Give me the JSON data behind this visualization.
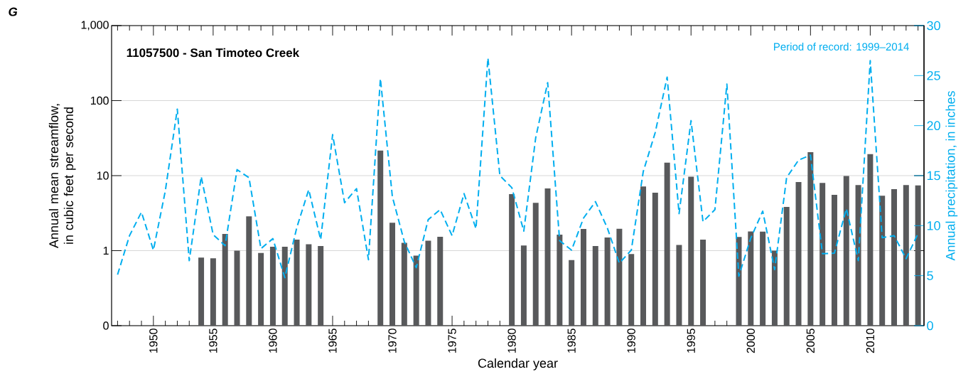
{
  "chart_data": {
    "type": "bar",
    "title": "11057500 - San Timoteo Creek",
    "annotations": [
      "G",
      "Period of record: 1999–2014"
    ],
    "xlabel": "Calendar year",
    "ylabel": "Annual mean streamflow, in cubic feet per second",
    "y2label": "Annual precipitation, in inches",
    "x": [
      1947,
      1948,
      1949,
      1950,
      1951,
      1952,
      1953,
      1954,
      1955,
      1956,
      1957,
      1958,
      1959,
      1960,
      1961,
      1962,
      1963,
      1964,
      1965,
      1966,
      1967,
      1968,
      1969,
      1970,
      1971,
      1972,
      1973,
      1974,
      1975,
      1976,
      1977,
      1978,
      1979,
      1980,
      1981,
      1982,
      1983,
      1984,
      1985,
      1986,
      1987,
      1988,
      1989,
      1990,
      1991,
      1992,
      1993,
      1994,
      1995,
      1996,
      1997,
      1998,
      1999,
      2000,
      2001,
      2002,
      2003,
      2004,
      2005,
      2006,
      2007,
      2008,
      2009,
      2010,
      2011,
      2012,
      2013,
      2014
    ],
    "series": [
      {
        "color": "#58595b",
        "values": [
          null,
          null,
          null,
          null,
          null,
          null,
          null,
          0.81,
          0.79,
          1.67,
          1.0,
          2.86,
          0.93,
          1.13,
          1.13,
          1.4,
          1.22,
          1.15,
          null,
          null,
          null,
          null,
          21.6,
          2.35,
          1.27,
          0.86,
          1.36,
          1.53,
          null,
          null,
          null,
          null,
          null,
          5.67,
          1.17,
          4.34,
          6.75,
          1.63,
          0.75,
          1.95,
          1.15,
          1.5,
          1.96,
          0.9,
          7.16,
          5.93,
          14.9,
          1.19,
          9.7,
          1.4,
          null,
          null,
          1.52,
          1.8,
          1.79,
          1.0,
          3.83,
          8.2,
          20.5,
          7.98,
          5.55,
          9.9,
          7.5,
          19.4,
          5.39,
          6.6,
          7.5,
          7.4
        ]
      },
      {
        "type": "line",
        "axis": "y2",
        "color": "#00aeef",
        "line_style": "dashed",
        "marker": "none",
        "values": [
          5.1,
          9.0,
          11.35,
          7.55,
          13.5,
          21.65,
          6.5,
          14.9,
          9.1,
          8.0,
          15.6,
          14.8,
          7.7,
          8.7,
          4.8,
          9.8,
          13.6,
          8.6,
          19.1,
          12.3,
          13.7,
          6.6,
          24.7,
          12.9,
          8.4,
          5.8,
          10.6,
          11.6,
          9.0,
          13.2,
          9.7,
          26.75,
          15.0,
          13.8,
          9.45,
          18.8,
          24.3,
          8.5,
          7.55,
          10.75,
          12.4,
          9.75,
          6.25,
          7.55,
          15.4,
          19.3,
          24.85,
          11.2,
          20.5,
          10.4,
          11.6,
          24.15,
          4.95,
          8.75,
          11.45,
          5.6,
          14.8,
          16.55,
          17.05,
          7.2,
          7.25,
          11.7,
          6.5,
          26.5,
          8.8,
          9.0,
          6.7,
          9.2
        ]
      }
    ],
    "xlim": [
      1946.5,
      2014.5
    ],
    "xticks": [
      {
        "value": 1947,
        "label": null
      },
      {
        "value": 1948,
        "label": null
      },
      {
        "value": 1949,
        "label": null
      },
      1950,
      {
        "value": 1951,
        "label": null
      },
      {
        "value": 1952,
        "label": null
      },
      {
        "value": 1953,
        "label": null
      },
      {
        "value": 1954,
        "label": null
      },
      1955,
      {
        "value": 1956,
        "label": null
      },
      {
        "value": 1957,
        "label": null
      },
      {
        "value": 1958,
        "label": null
      },
      {
        "value": 1959,
        "label": null
      },
      1960,
      {
        "value": 1961,
        "label": null
      },
      {
        "value": 1962,
        "label": null
      },
      {
        "value": 1963,
        "label": null
      },
      {
        "value": 1964,
        "label": null
      },
      1965,
      {
        "value": 1966,
        "label": null
      },
      {
        "value": 1967,
        "label": null
      },
      {
        "value": 1968,
        "label": null
      },
      {
        "value": 1969,
        "label": null
      },
      1970,
      {
        "value": 1971,
        "label": null
      },
      {
        "value": 1972,
        "label": null
      },
      {
        "value": 1973,
        "label": null
      },
      {
        "value": 1974,
        "label": null
      },
      1975,
      {
        "value": 1976,
        "label": null
      },
      {
        "value": 1977,
        "label": null
      },
      {
        "value": 1978,
        "label": null
      },
      {
        "value": 1979,
        "label": null
      },
      1980,
      {
        "value": 1981,
        "label": null
      },
      {
        "value": 1982,
        "label": null
      },
      {
        "value": 1983,
        "label": null
      },
      {
        "value": 1984,
        "label": null
      },
      1985,
      {
        "value": 1986,
        "label": null
      },
      {
        "value": 1987,
        "label": null
      },
      {
        "value": 1988,
        "label": null
      },
      {
        "value": 1989,
        "label": null
      },
      1990,
      {
        "value": 1991,
        "label": null
      },
      {
        "value": 1992,
        "label": null
      },
      {
        "value": 1993,
        "label": null
      },
      {
        "value": 1994,
        "label": null
      },
      1995,
      {
        "value": 1996,
        "label": null
      },
      {
        "value": 1997,
        "label": null
      },
      {
        "value": 1998,
        "label": null
      },
      {
        "value": 1999,
        "label": null
      },
      2000,
      {
        "value": 2001,
        "label": null
      },
      {
        "value": 2002,
        "label": null
      },
      {
        "value": 2003,
        "label": null
      },
      {
        "value": 2004,
        "label": null
      },
      2005,
      {
        "value": 2006,
        "label": null
      },
      {
        "value": 2007,
        "label": null
      },
      {
        "value": 2008,
        "label": null
      },
      {
        "value": 2009,
        "label": null
      },
      2010,
      {
        "value": 2011,
        "label": null
      },
      {
        "value": 2012,
        "label": null
      },
      {
        "value": 2013,
        "label": null
      },
      {
        "value": 2014,
        "label": null
      }
    ],
    "ylim": [
      0.1,
      1000
    ],
    "yticks": [
      {
        "value": 0.1,
        "label": "0"
      },
      1,
      10,
      100,
      {
        "value": 1000,
        "label": "1,000"
      }
    ],
    "y2lim": [
      0,
      30
    ],
    "y2ticks": [
      0,
      5,
      10,
      15,
      20,
      25,
      30
    ],
    "log": "y",
    "grid": "y"
  }
}
